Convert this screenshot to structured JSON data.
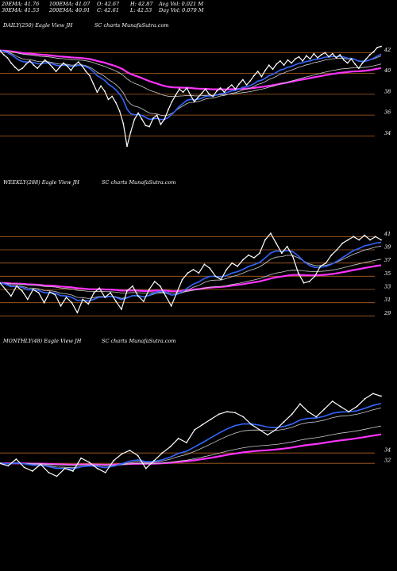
{
  "header": {
    "col1": [
      "20EMA: 41.76",
      "30EMA: 41.53"
    ],
    "col2": [
      "100EMA: 41.07",
      "200EMA: 40.91"
    ],
    "col3": [
      "O: 42.67",
      "C: 42.61"
    ],
    "col4": [
      "H: 42.87",
      "L: 42.53"
    ],
    "col5": [
      "Avg Vol: 0.021 M",
      "Day Vol: 0.079 M"
    ]
  },
  "panels": [
    {
      "title": "DAILY(250) Eagle  View  JH",
      "subtitle": "SC charts MunafaSutra.com"
    },
    {
      "title": "WEEKLY(288) Eagle  View  JH",
      "subtitle": "SC charts MunafaSutra.com"
    },
    {
      "title": "MONTHLY(48) Eagle  View  JH",
      "subtitle": "SC charts MunafaSutra.com"
    }
  ],
  "colors": {
    "background": "#000000",
    "price": "#ffffff",
    "ema_short": "#3366ff",
    "ema_long": "#ff33ff",
    "ema_mid": "#cccccc",
    "gridline": "#b06020"
  },
  "chart_data": [
    {
      "type": "line",
      "title": "DAILY(250) Eagle  View  JH",
      "y_ticks": [
        42,
        40,
        38,
        36,
        34
      ],
      "ylim": [
        32.2,
        43.4
      ],
      "series": [
        {
          "values": [
            42.2,
            41.8,
            41.5,
            41.0,
            40.6,
            40.3,
            40.5,
            40.9,
            41.2,
            40.8,
            40.5,
            40.9,
            41.3,
            41.0,
            40.6,
            40.2,
            40.6,
            41.0,
            40.7,
            40.3,
            40.8,
            41.1,
            40.7,
            40.2,
            39.8,
            39.0,
            38.2,
            38.8,
            38.3,
            37.5,
            37.8,
            37.2,
            36.4,
            35.2,
            33.0,
            34.4,
            35.6,
            36.2,
            35.6,
            35.0,
            34.9,
            35.7,
            36.0,
            35.1,
            35.6,
            36.5,
            37.3,
            37.9,
            38.5,
            38.2,
            38.6,
            37.9,
            37.3,
            37.7,
            38.1,
            38.5,
            38.0,
            37.8,
            38.3,
            38.6,
            38.2,
            38.6,
            38.9,
            38.5,
            39.0,
            39.4,
            38.9,
            39.3,
            39.8,
            40.2,
            39.7,
            40.3,
            40.8,
            40.4,
            40.9,
            41.2,
            40.8,
            41.3,
            41.0,
            41.4,
            41.6,
            41.2,
            41.7,
            41.4,
            41.9,
            41.5,
            41.8,
            42.0,
            41.6,
            41.9,
            41.5,
            41.8,
            41.3,
            41.0,
            41.4,
            40.9,
            40.5,
            41.0,
            41.4,
            41.8,
            42.1,
            42.5,
            42.6
          ]
        }
      ]
    },
    {
      "type": "line",
      "title": "WEEKLY(288) Eagle  View  JH",
      "y_ticks": [
        41,
        39,
        37,
        35,
        33,
        31,
        29
      ],
      "ylim": [
        28.2,
        42.6
      ],
      "series": [
        {
          "values": [
            34.0,
            33.0,
            32.0,
            33.5,
            32.8,
            31.5,
            33.0,
            32.5,
            31.0,
            32.6,
            32.2,
            30.5,
            31.8,
            31.0,
            29.5,
            31.5,
            30.8,
            32.5,
            33.2,
            31.8,
            32.5,
            31.2,
            30.0,
            32.8,
            33.5,
            32.0,
            31.2,
            33.0,
            34.2,
            33.5,
            32.0,
            30.5,
            32.5,
            34.5,
            35.5,
            36.0,
            35.5,
            36.8,
            36.2,
            35.0,
            34.5,
            36.0,
            37.0,
            36.5,
            37.5,
            38.2,
            37.8,
            38.5,
            40.5,
            41.5,
            40.0,
            38.5,
            39.5,
            38.0,
            35.5,
            34.0,
            34.2,
            35.0,
            36.5,
            37.0,
            38.2,
            39.0,
            40.0,
            40.5,
            41.0,
            40.5,
            41.2,
            40.5,
            41.0,
            40.5
          ]
        }
      ]
    },
    {
      "type": "line",
      "title": "MONTHLY(48) Eagle  View  JH",
      "y_ticks": [
        34,
        32
      ],
      "ylim": [
        26.5,
        48.0
      ],
      "series": [
        {
          "values": [
            32.0,
            31.5,
            32.8,
            31.2,
            30.5,
            31.8,
            30.2,
            29.5,
            31.0,
            30.5,
            33.0,
            32.2,
            31.0,
            30.2,
            32.5,
            33.8,
            34.5,
            33.5,
            31.0,
            32.5,
            34.0,
            35.2,
            36.8,
            36.0,
            38.5,
            39.5,
            40.5,
            41.5,
            42.0,
            41.8,
            41.0,
            39.5,
            38.5,
            37.5,
            38.5,
            40.0,
            41.5,
            43.5,
            42.0,
            41.0,
            42.5,
            44.0,
            43.0,
            42.0,
            43.0,
            44.5,
            45.5,
            45.0
          ]
        }
      ]
    }
  ]
}
